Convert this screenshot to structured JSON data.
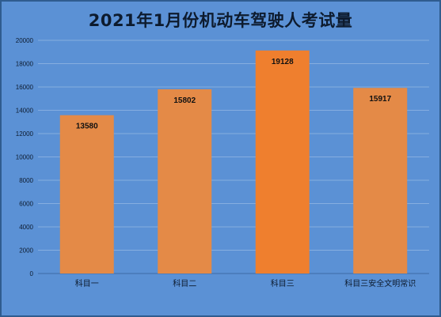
{
  "chart_data": {
    "type": "bar",
    "title": "2021年1月份机动车驾驶人考试量",
    "xlabel": "",
    "ylabel": "",
    "categories": [
      "科目一",
      "科目二",
      "科目三",
      "科目三安全文明常识"
    ],
    "values": [
      13580,
      15802,
      19128,
      15917
    ],
    "ylim": [
      0,
      20000
    ],
    "yticks": [
      0,
      2000,
      4000,
      6000,
      8000,
      10000,
      12000,
      14000,
      16000,
      18000,
      20000
    ],
    "grid": true,
    "legend": "none",
    "data_labels": true,
    "colors": {
      "background": "#5b91d5",
      "gridline": "#86aee0",
      "bar": "#e48a47",
      "bar_highlight": "#ef7f2e",
      "text": "#0d1b2e"
    }
  }
}
